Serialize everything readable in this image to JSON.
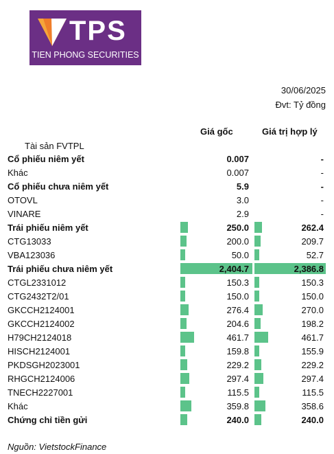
{
  "logo": {
    "letters": "TPS",
    "tagline": "TIEN PHONG SECURITIES",
    "brand_color": "#6b2f85"
  },
  "header": {
    "date": "30/06/2025",
    "unit": "Đvt: Tỷ đồng"
  },
  "columns": {
    "cost": "Giá gốc",
    "fair": "Giá trị hợp lý"
  },
  "section_title": "Tài sản FVTPL",
  "bar_color": "#5cc38a",
  "rows": [
    {
      "label": "Cổ phiếu niêm yết",
      "bold": true,
      "cost": "0.007",
      "fair": "-",
      "cost_num": 0.007,
      "fair_num": 0
    },
    {
      "label": "Khác",
      "bold": false,
      "cost": "0.007",
      "fair": "-",
      "cost_num": 0.007,
      "fair_num": 0
    },
    {
      "label": "Cổ phiếu chưa niêm yết",
      "bold": true,
      "cost": "5.9",
      "fair": "-",
      "cost_num": 5.9,
      "fair_num": 0
    },
    {
      "label": "OTOVL",
      "bold": false,
      "cost": "3.0",
      "fair": "-",
      "cost_num": 3.0,
      "fair_num": 0
    },
    {
      "label": "VINARE",
      "bold": false,
      "cost": "2.9",
      "fair": "-",
      "cost_num": 2.9,
      "fair_num": 0
    },
    {
      "label": "Trái phiếu niêm yết",
      "bold": true,
      "cost": "250.0",
      "fair": "262.4",
      "cost_num": 250.0,
      "fair_num": 262.4
    },
    {
      "label": "CTG13033",
      "bold": false,
      "cost": "200.0",
      "fair": "209.7",
      "cost_num": 200.0,
      "fair_num": 209.7
    },
    {
      "label": "VBA123036",
      "bold": false,
      "cost": "50.0",
      "fair": "52.7",
      "cost_num": 50.0,
      "fair_num": 52.7
    },
    {
      "label": "Trái phiếu chưa niêm yết",
      "bold": true,
      "cost": "2,404.7",
      "fair": "2,386.8",
      "cost_num": 2404.7,
      "fair_num": 2386.8
    },
    {
      "label": "CTGL2331012",
      "bold": false,
      "cost": "150.3",
      "fair": "150.3",
      "cost_num": 150.3,
      "fair_num": 150.3
    },
    {
      "label": "CTG2432T2/01",
      "bold": false,
      "cost": "150.0",
      "fair": "150.0",
      "cost_num": 150.0,
      "fair_num": 150.0
    },
    {
      "label": "GKCCH2124001",
      "bold": false,
      "cost": "276.4",
      "fair": "270.0",
      "cost_num": 276.4,
      "fair_num": 270.0
    },
    {
      "label": "GKCCH2124002",
      "bold": false,
      "cost": "204.6",
      "fair": "198.2",
      "cost_num": 204.6,
      "fair_num": 198.2
    },
    {
      "label": "H79CH2124018",
      "bold": false,
      "cost": "461.7",
      "fair": "461.7",
      "cost_num": 461.7,
      "fair_num": 461.7
    },
    {
      "label": "HISCH2124001",
      "bold": false,
      "cost": "159.8",
      "fair": "155.9",
      "cost_num": 159.8,
      "fair_num": 155.9
    },
    {
      "label": "PKDSGH2023001",
      "bold": false,
      "cost": "229.2",
      "fair": "229.2",
      "cost_num": 229.2,
      "fair_num": 229.2
    },
    {
      "label": "RHGCH2124006",
      "bold": false,
      "cost": "297.4",
      "fair": "297.4",
      "cost_num": 297.4,
      "fair_num": 297.4
    },
    {
      "label": "TNECH2227001",
      "bold": false,
      "cost": "115.5",
      "fair": "115.5",
      "cost_num": 115.5,
      "fair_num": 115.5
    },
    {
      "label": "Khác",
      "bold": false,
      "cost": "359.8",
      "fair": "358.6",
      "cost_num": 359.8,
      "fair_num": 358.6
    },
    {
      "label": "Chứng chỉ tiền gửi",
      "bold": true,
      "cost": "240.0",
      "fair": "240.0",
      "cost_num": 240.0,
      "fair_num": 240.0
    }
  ],
  "source": "Nguồn: VietstockFinance"
}
